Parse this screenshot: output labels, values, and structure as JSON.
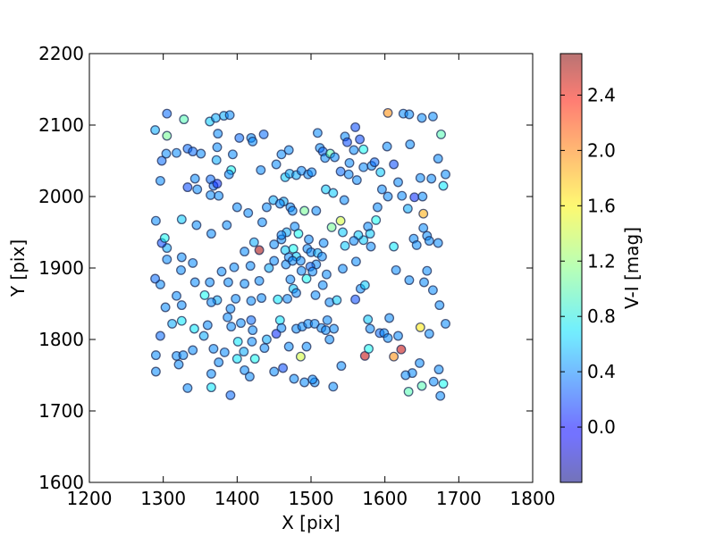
{
  "chart_data": {
    "type": "scatter",
    "xlabel": "X [pix]",
    "ylabel": "Y [pix]",
    "xlim": [
      1200,
      1800
    ],
    "ylim": [
      1600,
      2200
    ],
    "x_ticks": [
      "1200",
      "1300",
      "1400",
      "1500",
      "1600",
      "1700",
      "1800"
    ],
    "y_ticks": [
      "1600",
      "1700",
      "1800",
      "1900",
      "2000",
      "2100",
      "2200"
    ],
    "grid": false,
    "colorbar": {
      "label": "V-I [mag]",
      "range": [
        -0.4,
        2.7
      ],
      "ticks": [
        "0.0",
        "0.4",
        "0.8",
        "1.2",
        "1.6",
        "2.0",
        "2.4"
      ],
      "colormap": "jet",
      "alpha": 0.55
    },
    "points": [
      [
        1305,
        2116,
        0.3
      ],
      [
        1289,
        2093,
        0.5
      ],
      [
        1328,
        2108,
        1.0
      ],
      [
        1305,
        2085,
        1.1
      ],
      [
        1298,
        2050,
        0.3
      ],
      [
        1304,
        2060,
        0.4
      ],
      [
        1318,
        2061,
        0.4
      ],
      [
        1333,
        2067,
        0.3
      ],
      [
        1340,
        2063,
        0.3
      ],
      [
        1351,
        2060,
        0.4
      ],
      [
        1363,
        2105,
        0.6
      ],
      [
        1371,
        2110,
        0.5
      ],
      [
        1382,
        2113,
        0.5
      ],
      [
        1390,
        2114,
        0.4
      ],
      [
        1374,
        2088,
        0.4
      ],
      [
        1373,
        2069,
        0.4
      ],
      [
        1403,
        2082,
        0.3
      ],
      [
        1419,
        2082,
        0.4
      ],
      [
        1421,
        2077,
        0.4
      ],
      [
        1372,
        2051,
        0.5
      ],
      [
        1394,
        2059,
        0.4
      ],
      [
        1392,
        2037,
        0.8
      ],
      [
        1389,
        2031,
        0.4
      ],
      [
        1364,
        2024,
        0.3
      ],
      [
        1368,
        2015,
        0.3
      ],
      [
        1373,
        2018,
        0.1
      ],
      [
        1333,
        2013,
        0.2
      ],
      [
        1343,
        2025,
        0.4
      ],
      [
        1346,
        2010,
        0.4
      ],
      [
        1364,
        2002,
        0.4
      ],
      [
        1375,
        2001,
        0.4
      ],
      [
        1296,
        2022,
        0.4
      ],
      [
        1432,
        2037,
        0.4
      ],
      [
        1436,
        2087,
        0.3
      ],
      [
        1453,
        2045,
        0.4
      ],
      [
        1460,
        2059,
        0.4
      ],
      [
        1470,
        2065,
        0.4
      ],
      [
        1465,
        2027,
        0.6
      ],
      [
        1471,
        2032,
        0.5
      ],
      [
        1480,
        2030,
        0.5
      ],
      [
        1487,
        2036,
        0.4
      ],
      [
        1496,
        2031,
        0.4
      ],
      [
        1501,
        2034,
        0.4
      ],
      [
        1509,
        2089,
        0.4
      ],
      [
        1512,
        2068,
        0.4
      ],
      [
        1516,
        2063,
        0.3
      ],
      [
        1519,
        2054,
        0.4
      ],
      [
        1526,
        2060,
        1.0
      ],
      [
        1532,
        2055,
        0.4
      ],
      [
        1546,
        2084,
        0.4
      ],
      [
        1549,
        2076,
        0.2
      ],
      [
        1560,
        2097,
        0.2
      ],
      [
        1566,
        2080,
        0.2
      ],
      [
        1571,
        2066,
        0.8
      ],
      [
        1558,
        2065,
        0.4
      ],
      [
        1552,
        2047,
        0.4
      ],
      [
        1540,
        2035,
        0.3
      ],
      [
        1551,
        2031,
        0.4
      ],
      [
        1562,
        2023,
        0.4
      ],
      [
        1571,
        2041,
        0.4
      ],
      [
        1582,
        2043,
        0.4
      ],
      [
        1586,
        2048,
        0.3
      ],
      [
        1594,
        2034,
        0.6
      ],
      [
        1603,
        2070,
        0.4
      ],
      [
        1604,
        2117,
        1.9
      ],
      [
        1625,
        2116,
        0.4
      ],
      [
        1633,
        2115,
        0.4
      ],
      [
        1634,
        2073,
        0.4
      ],
      [
        1650,
        2110,
        0.4
      ],
      [
        1665,
        2112,
        0.4
      ],
      [
        1676,
        2087,
        1.0
      ],
      [
        1672,
        2053,
        0.4
      ],
      [
        1682,
        2031,
        0.4
      ],
      [
        1612,
        2045,
        0.2
      ],
      [
        1596,
        2010,
        0.4
      ],
      [
        1604,
        2000,
        0.4
      ],
      [
        1618,
        2020,
        0.4
      ],
      [
        1623,
        2001,
        0.4
      ],
      [
        1640,
        1999,
        0.1
      ],
      [
        1651,
        2000,
        0.4
      ],
      [
        1648,
        2026,
        0.4
      ],
      [
        1663,
        2025,
        0.4
      ],
      [
        1679,
        2015,
        0.7
      ],
      [
        1631,
        1983,
        0.5
      ],
      [
        1652,
        1976,
        1.8
      ],
      [
        1639,
        1941,
        0.4
      ],
      [
        1643,
        1932,
        0.4
      ],
      [
        1657,
        1945,
        0.4
      ],
      [
        1660,
        1938,
        0.4
      ],
      [
        1652,
        1956,
        0.4
      ],
      [
        1672,
        1935,
        0.4
      ],
      [
        1612,
        1930,
        0.7
      ],
      [
        1615,
        1897,
        0.4
      ],
      [
        1590,
        1985,
        0.4
      ],
      [
        1588,
        1967,
        0.8
      ],
      [
        1577,
        1958,
        0.4
      ],
      [
        1580,
        1948,
        0.6
      ],
      [
        1581,
        1930,
        0.4
      ],
      [
        1571,
        1939,
        0.6
      ],
      [
        1564,
        1946,
        0.6
      ],
      [
        1558,
        1938,
        0.4
      ],
      [
        1546,
        1931,
        0.6
      ],
      [
        1543,
        1950,
        0.6
      ],
      [
        1540,
        1966,
        1.4
      ],
      [
        1528,
        1957,
        1.1
      ],
      [
        1520,
        2010,
        0.6
      ],
      [
        1530,
        2005,
        0.6
      ],
      [
        1545,
        1995,
        0.4
      ],
      [
        1507,
        1980,
        0.4
      ],
      [
        1491,
        1980,
        1.1
      ],
      [
        1472,
        1985,
        0.4
      ],
      [
        1463,
        1993,
        0.5
      ],
      [
        1449,
        1995,
        0.5
      ],
      [
        1478,
        1958,
        0.4
      ],
      [
        1483,
        1948,
        0.8
      ],
      [
        1467,
        1950,
        0.5
      ],
      [
        1460,
        1940,
        0.4
      ],
      [
        1465,
        1925,
        0.6
      ],
      [
        1476,
        1927,
        0.8
      ],
      [
        1480,
        1916,
        0.6
      ],
      [
        1495,
        1927,
        0.4
      ],
      [
        1500,
        1922,
        0.4
      ],
      [
        1509,
        1921,
        0.5
      ],
      [
        1515,
        1916,
        0.4
      ],
      [
        1507,
        1905,
        0.4
      ],
      [
        1499,
        1902,
        0.3
      ],
      [
        1466,
        1905,
        0.4
      ],
      [
        1470,
        1915,
        0.4
      ],
      [
        1475,
        1910,
        0.4
      ],
      [
        1487,
        1896,
        0.4
      ],
      [
        1472,
        1884,
        0.4
      ],
      [
        1476,
        1871,
        0.6
      ],
      [
        1468,
        1857,
        0.4
      ],
      [
        1455,
        1856,
        0.7
      ],
      [
        1430,
        1925,
        2.6
      ],
      [
        1423,
        1936,
        0.5
      ],
      [
        1410,
        1923,
        0.4
      ],
      [
        1396,
        1901,
        0.4
      ],
      [
        1418,
        1903,
        0.4
      ],
      [
        1410,
        1878,
        0.4
      ],
      [
        1430,
        1882,
        0.4
      ],
      [
        1433,
        1858,
        0.4
      ],
      [
        1419,
        1854,
        0.4
      ],
      [
        1398,
        1857,
        0.4
      ],
      [
        1391,
        1843,
        0.4
      ],
      [
        1373,
        1855,
        0.5
      ],
      [
        1356,
        1862,
        0.8
      ],
      [
        1365,
        1852,
        0.4
      ],
      [
        1363,
        1880,
        0.4
      ],
      [
        1379,
        1895,
        0.4
      ],
      [
        1388,
        1880,
        0.4
      ],
      [
        1340,
        1907,
        0.4
      ],
      [
        1343,
        1880,
        0.4
      ],
      [
        1325,
        1915,
        0.4
      ],
      [
        1324,
        1897,
        0.4
      ],
      [
        1305,
        1928,
        0.5
      ],
      [
        1298,
        1935,
        0.2
      ],
      [
        1302,
        1942,
        0.8
      ],
      [
        1318,
        1861,
        0.4
      ],
      [
        1325,
        1848,
        0.4
      ],
      [
        1303,
        1845,
        0.4
      ],
      [
        1296,
        1877,
        0.4
      ],
      [
        1289,
        1885,
        0.3
      ],
      [
        1312,
        1822,
        0.5
      ],
      [
        1325,
        1826,
        0.7
      ],
      [
        1342,
        1815,
        0.7
      ],
      [
        1355,
        1805,
        0.5
      ],
      [
        1360,
        1820,
        0.4
      ],
      [
        1387,
        1831,
        0.4
      ],
      [
        1392,
        1818,
        0.4
      ],
      [
        1405,
        1823,
        0.4
      ],
      [
        1419,
        1827,
        0.3
      ],
      [
        1421,
        1813,
        0.4
      ],
      [
        1401,
        1797,
        0.7
      ],
      [
        1420,
        1797,
        0.4
      ],
      [
        1440,
        1800,
        0.5
      ],
      [
        1437,
        1788,
        0.4
      ],
      [
        1409,
        1783,
        0.5
      ],
      [
        1400,
        1773,
        0.7
      ],
      [
        1383,
        1782,
        0.4
      ],
      [
        1368,
        1787,
        0.4
      ],
      [
        1375,
        1768,
        0.4
      ],
      [
        1340,
        1785,
        0.4
      ],
      [
        1318,
        1777,
        0.4
      ],
      [
        1327,
        1778,
        0.4
      ],
      [
        1321,
        1765,
        0.4
      ],
      [
        1290,
        1778,
        0.4
      ],
      [
        1296,
        1805,
        0.3
      ],
      [
        1290,
        1755,
        0.4
      ],
      [
        1333,
        1732,
        0.4
      ],
      [
        1365,
        1752,
        0.4
      ],
      [
        1365,
        1733,
        0.7
      ],
      [
        1391,
        1722,
        0.3
      ],
      [
        1410,
        1757,
        0.4
      ],
      [
        1417,
        1748,
        0.4
      ],
      [
        1424,
        1773,
        0.8
      ],
      [
        1453,
        1808,
        0.1
      ],
      [
        1458,
        1827,
        0.7
      ],
      [
        1460,
        1816,
        0.4
      ],
      [
        1470,
        1790,
        0.4
      ],
      [
        1480,
        1815,
        0.4
      ],
      [
        1488,
        1818,
        0.4
      ],
      [
        1494,
        1790,
        0.4
      ],
      [
        1496,
        1822,
        0.4
      ],
      [
        1505,
        1822,
        0.4
      ],
      [
        1514,
        1816,
        0.4
      ],
      [
        1520,
        1813,
        0.4
      ],
      [
        1525,
        1800,
        0.4
      ],
      [
        1531,
        1815,
        0.4
      ],
      [
        1522,
        1827,
        0.4
      ],
      [
        1525,
        1852,
        0.4
      ],
      [
        1535,
        1855,
        0.6
      ],
      [
        1516,
        1876,
        0.4
      ],
      [
        1521,
        1891,
        0.4
      ],
      [
        1543,
        1899,
        0.4
      ],
      [
        1561,
        1909,
        0.4
      ],
      [
        1567,
        1871,
        0.4
      ],
      [
        1573,
        1876,
        0.6
      ],
      [
        1560,
        1856,
        0.2
      ],
      [
        1577,
        1828,
        0.6
      ],
      [
        1580,
        1815,
        0.4
      ],
      [
        1593,
        1809,
        0.3
      ],
      [
        1599,
        1809,
        0.4
      ],
      [
        1604,
        1802,
        0.4
      ],
      [
        1606,
        1830,
        0.4
      ],
      [
        1618,
        1805,
        0.4
      ],
      [
        1648,
        1817,
        1.6
      ],
      [
        1660,
        1808,
        0.4
      ],
      [
        1674,
        1848,
        0.4
      ],
      [
        1682,
        1822,
        0.4
      ],
      [
        1665,
        1869,
        0.4
      ],
      [
        1653,
        1880,
        0.4
      ],
      [
        1657,
        1896,
        0.4
      ],
      [
        1633,
        1883,
        0.4
      ],
      [
        1647,
        1767,
        0.4
      ],
      [
        1637,
        1753,
        0.4
      ],
      [
        1628,
        1750,
        0.4
      ],
      [
        1622,
        1786,
        2.5
      ],
      [
        1612,
        1776,
        1.9
      ],
      [
        1573,
        1777,
        2.5
      ],
      [
        1578,
        1787,
        0.8
      ],
      [
        1541,
        1763,
        0.4
      ],
      [
        1530,
        1734,
        0.4
      ],
      [
        1505,
        1740,
        0.4
      ],
      [
        1502,
        1744,
        0.4
      ],
      [
        1491,
        1740,
        0.4
      ],
      [
        1477,
        1745,
        0.4
      ],
      [
        1486,
        1776,
        1.4
      ],
      [
        1462,
        1760,
        0.2
      ],
      [
        1450,
        1755,
        0.4
      ],
      [
        1632,
        1727,
        1.0
      ],
      [
        1650,
        1735,
        1.0
      ],
      [
        1666,
        1741,
        0.4
      ],
      [
        1673,
        1758,
        0.4
      ],
      [
        1679,
        1738,
        0.8
      ],
      [
        1675,
        1721,
        0.4
      ],
      [
        1494,
        1885,
        0.8
      ],
      [
        1506,
        1862,
        0.4
      ],
      [
        1450,
        1933,
        0.4
      ],
      [
        1460,
        1946,
        0.4
      ],
      [
        1486,
        1910,
        0.4
      ],
      [
        1502,
        1895,
        0.4
      ],
      [
        1443,
        1900,
        0.5
      ],
      [
        1345,
        1960,
        0.4
      ],
      [
        1365,
        1948,
        0.4
      ],
      [
        1386,
        1960,
        0.4
      ],
      [
        1400,
        1985,
        0.4
      ],
      [
        1415,
        1977,
        0.4
      ],
      [
        1434,
        1964,
        0.4
      ],
      [
        1440,
        1985,
        0.4
      ],
      [
        1458,
        1990,
        0.4
      ],
      [
        1475,
        1980,
        0.4
      ],
      [
        1325,
        1968,
        0.6
      ],
      [
        1290,
        1966,
        0.4
      ],
      [
        1305,
        1912,
        0.4
      ],
      [
        1480,
        1865,
        0.4
      ],
      [
        1497,
        1940,
        0.4
      ],
      [
        1517,
        1935,
        0.4
      ],
      [
        1450,
        1910,
        0.4
      ]
    ]
  }
}
